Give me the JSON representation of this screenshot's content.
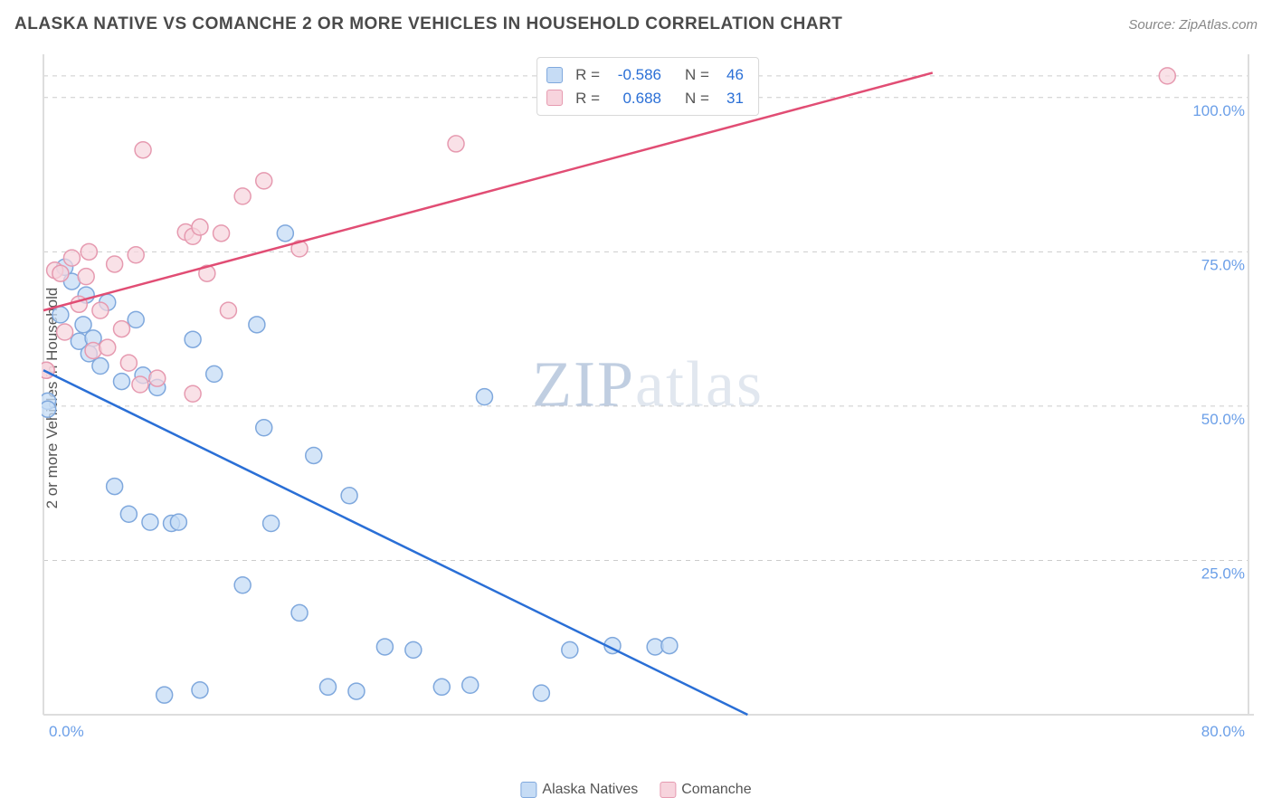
{
  "title": "ALASKA NATIVE VS COMANCHE 2 OR MORE VEHICLES IN HOUSEHOLD CORRELATION CHART",
  "source_prefix": "Source: ",
  "source_name": "ZipAtlas.com",
  "y_axis_label": "2 or more Vehicles in Household",
  "watermark_a": "ZIP",
  "watermark_b": "atlas",
  "chart": {
    "type": "scatter",
    "xlim": [
      0,
      80
    ],
    "ylim": [
      0,
      107
    ],
    "x_ticks": [
      0,
      80
    ],
    "x_tick_labels": [
      "0.0%",
      "80.0%"
    ],
    "y_ticks": [
      25,
      50,
      75,
      100
    ],
    "y_tick_labels": [
      "25.0%",
      "50.0%",
      "75.0%",
      "100.0%"
    ],
    "grid_color": "#cccccc",
    "grid_dash": "5 5",
    "background_color": "#ffffff",
    "border_color": "#dddddd",
    "marker_radius": 9,
    "marker_stroke_width": 1.5,
    "series": [
      {
        "name": "Alaska Natives",
        "label": "Alaska Natives",
        "fill": "#c6dcf5",
        "stroke": "#7fa8dd",
        "fill_opacity": 0.75,
        "points": [
          [
            0.3,
            50.8
          ],
          [
            0.3,
            49.5
          ],
          [
            1.2,
            64.8
          ],
          [
            1.5,
            72.5
          ],
          [
            2.0,
            70.2
          ],
          [
            2.5,
            60.5
          ],
          [
            2.8,
            63.2
          ],
          [
            3.0,
            68.0
          ],
          [
            3.2,
            58.5
          ],
          [
            3.5,
            61.0
          ],
          [
            4.0,
            56.5
          ],
          [
            4.5,
            66.8
          ],
          [
            5.0,
            37.0
          ],
          [
            5.5,
            54.0
          ],
          [
            6.0,
            32.5
          ],
          [
            6.5,
            64.0
          ],
          [
            7.0,
            55.0
          ],
          [
            7.5,
            31.2
          ],
          [
            8.0,
            53.0
          ],
          [
            8.5,
            3.2
          ],
          [
            9.0,
            31.0
          ],
          [
            9.5,
            31.2
          ],
          [
            10.5,
            60.8
          ],
          [
            11.0,
            4.0
          ],
          [
            12.0,
            55.2
          ],
          [
            14.0,
            21.0
          ],
          [
            15.0,
            63.2
          ],
          [
            15.5,
            46.5
          ],
          [
            16.0,
            31.0
          ],
          [
            17.0,
            78.0
          ],
          [
            18.0,
            16.5
          ],
          [
            19.0,
            42.0
          ],
          [
            20.0,
            4.5
          ],
          [
            21.5,
            35.5
          ],
          [
            22.0,
            3.8
          ],
          [
            24.0,
            11.0
          ],
          [
            26.0,
            10.5
          ],
          [
            28.0,
            4.5
          ],
          [
            30.0,
            4.8
          ],
          [
            31.0,
            51.5
          ],
          [
            35.0,
            3.5
          ],
          [
            37.0,
            10.5
          ],
          [
            40.0,
            11.2
          ],
          [
            43.0,
            11.0
          ],
          [
            44.0,
            11.2
          ],
          [
            45.5,
            103.8
          ]
        ],
        "trend": {
          "x1": 0,
          "y1": 55.8,
          "x2": 49.5,
          "y2": 0,
          "color": "#2a6fd6",
          "width": 2.5
        },
        "R": "-0.586",
        "N": "46"
      },
      {
        "name": "Comanche",
        "label": "Comanche",
        "fill": "#f7d4dd",
        "stroke": "#e69ab0",
        "fill_opacity": 0.7,
        "points": [
          [
            0.2,
            55.8
          ],
          [
            0.2,
            55.8
          ],
          [
            0.8,
            72.0
          ],
          [
            1.2,
            71.5
          ],
          [
            1.5,
            62.0
          ],
          [
            2.0,
            74.0
          ],
          [
            2.5,
            66.5
          ],
          [
            3.0,
            71.0
          ],
          [
            3.2,
            75.0
          ],
          [
            3.5,
            59.0
          ],
          [
            4.0,
            65.5
          ],
          [
            4.5,
            59.5
          ],
          [
            5.0,
            73.0
          ],
          [
            5.5,
            62.5
          ],
          [
            6.0,
            57.0
          ],
          [
            6.5,
            74.5
          ],
          [
            6.8,
            53.5
          ],
          [
            7.0,
            91.5
          ],
          [
            8.0,
            54.5
          ],
          [
            10.0,
            78.2
          ],
          [
            10.5,
            52.0
          ],
          [
            10.5,
            77.5
          ],
          [
            11.0,
            79.0
          ],
          [
            11.5,
            71.5
          ],
          [
            12.5,
            78.0
          ],
          [
            13.0,
            65.5
          ],
          [
            14.0,
            84.0
          ],
          [
            15.5,
            86.5
          ],
          [
            18.0,
            75.5
          ],
          [
            29.0,
            92.5
          ],
          [
            79.0,
            103.5
          ]
        ],
        "trend": {
          "x1": 0,
          "y1": 65.5,
          "x2": 62.5,
          "y2": 104.0,
          "color": "#e14d74",
          "width": 2.5
        },
        "R": "0.688",
        "N": "31"
      }
    ]
  },
  "stat_labels": {
    "R": "R =",
    "N": "N ="
  }
}
